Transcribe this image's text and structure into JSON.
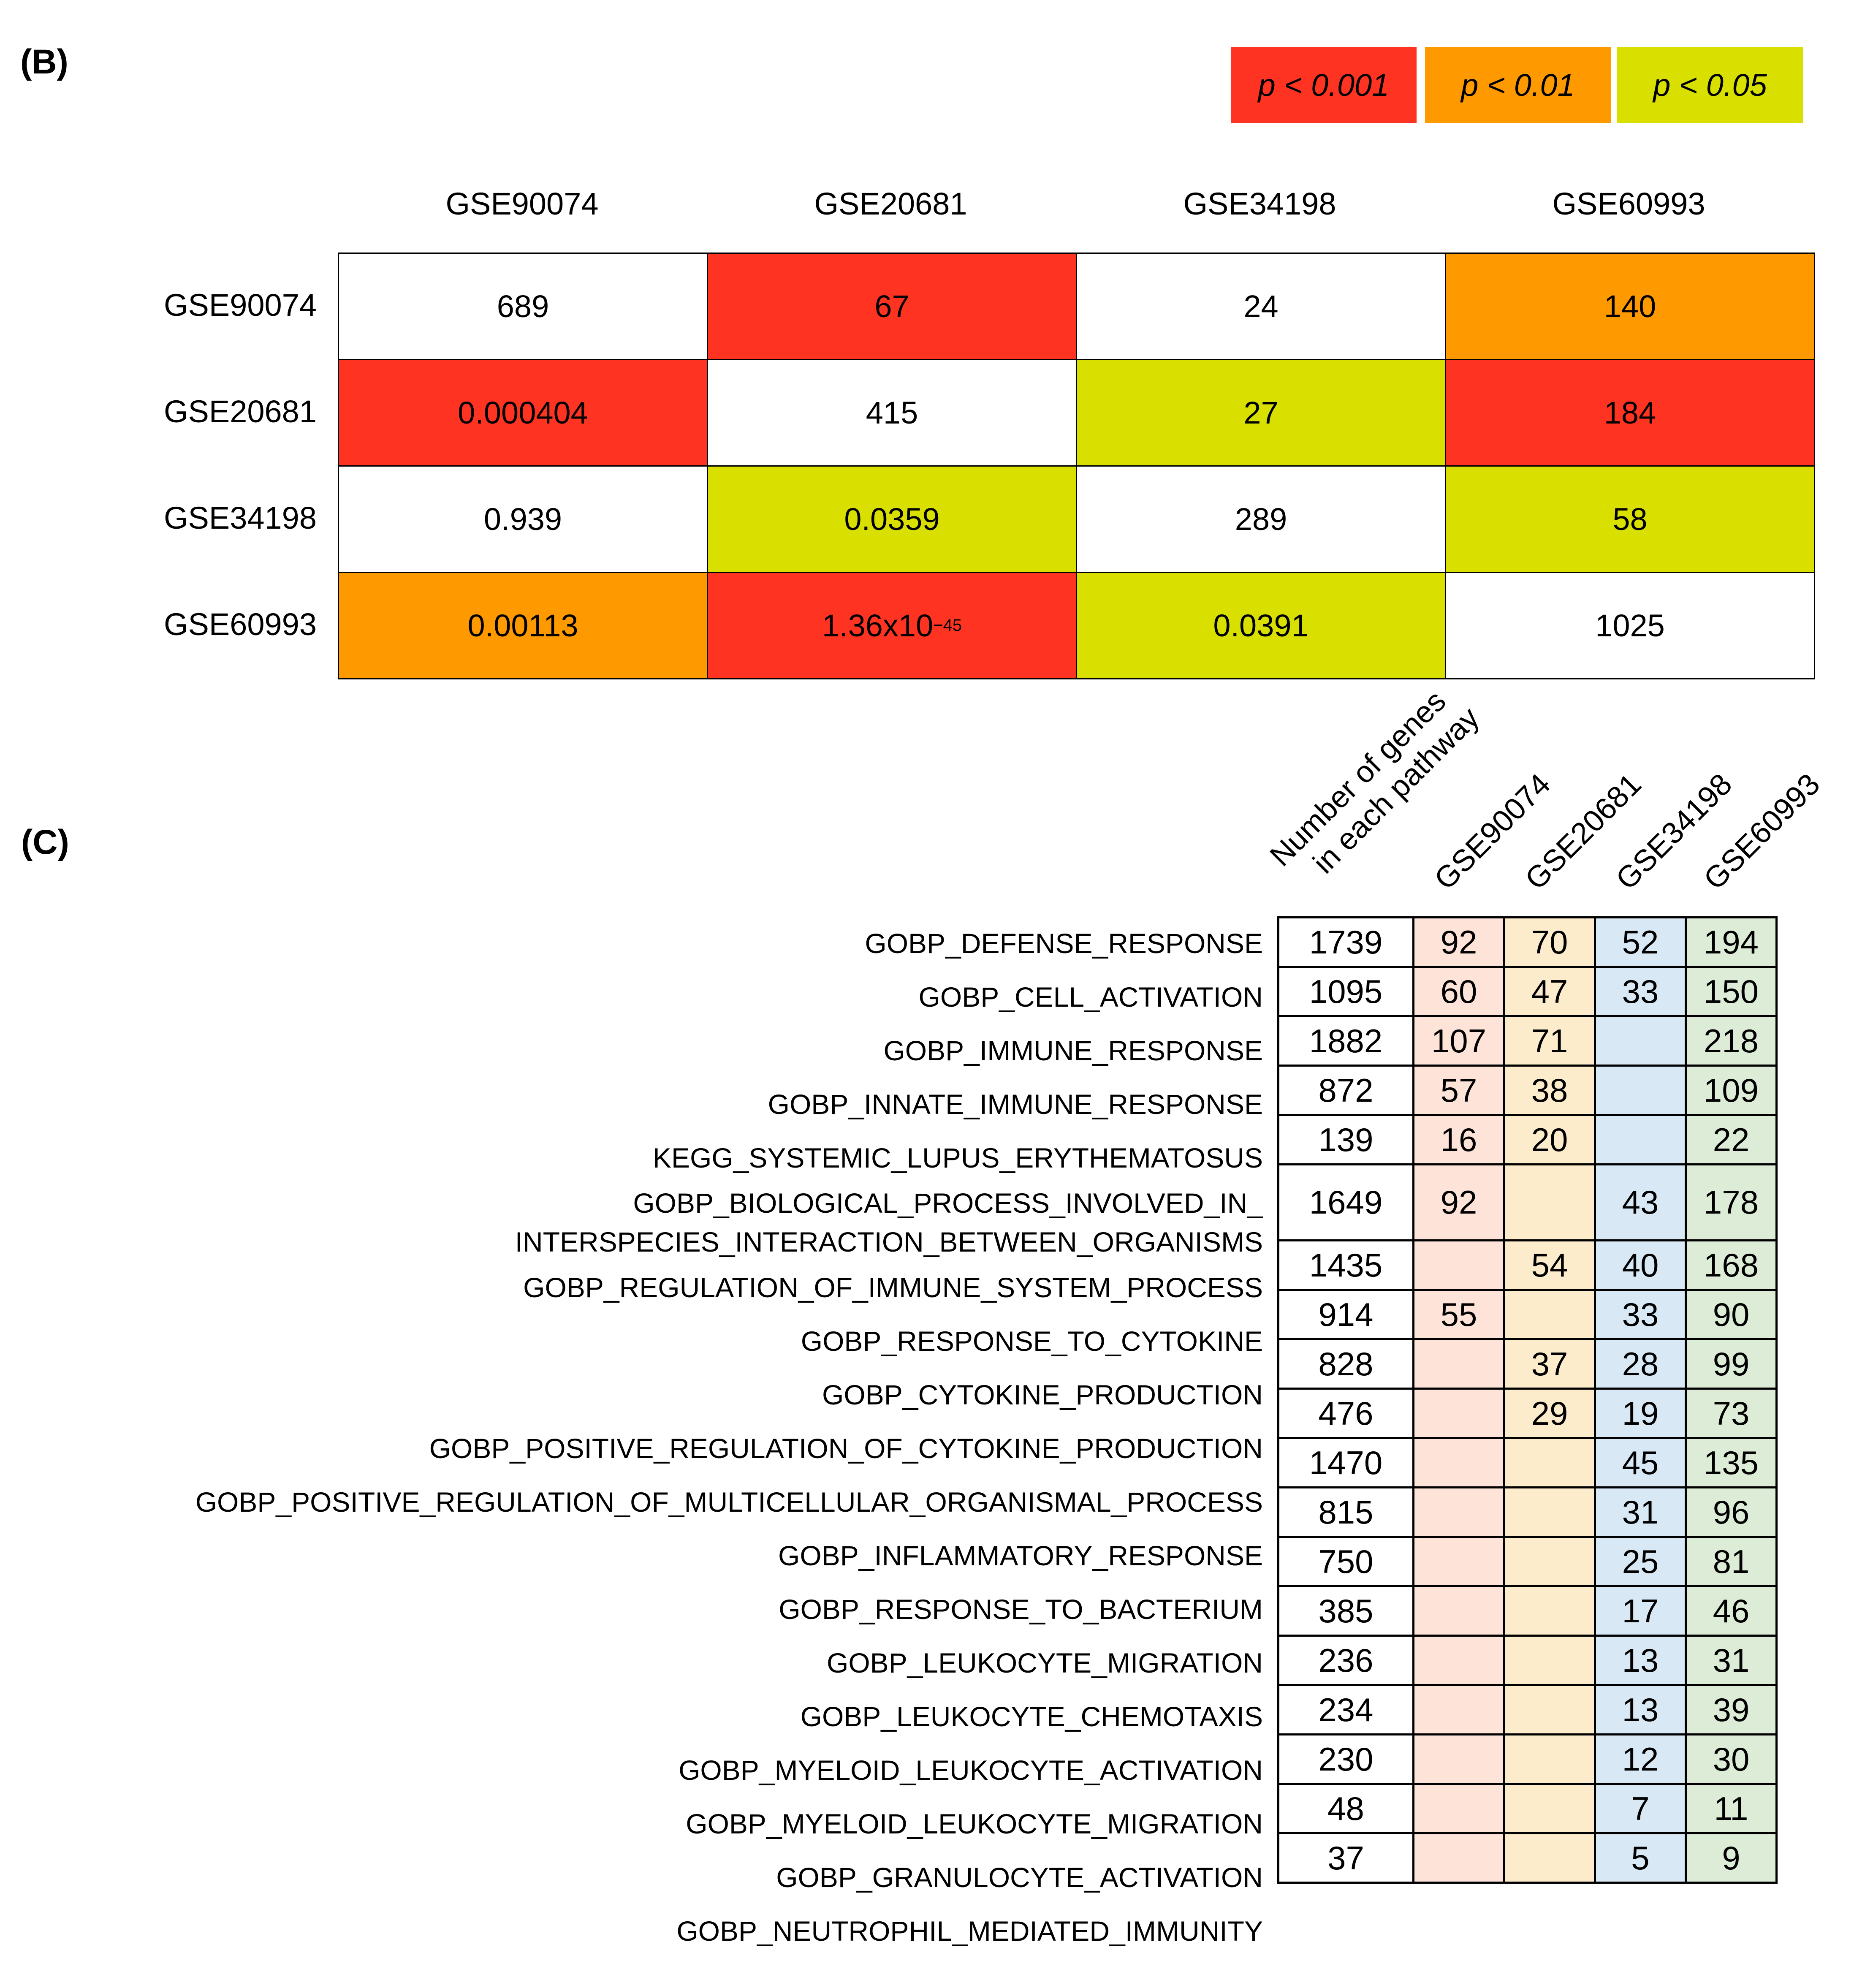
{
  "panel_b_label": "(B)",
  "panel_c_label": "(C)",
  "legend": [
    {
      "label": "p < 0.001",
      "color": "#ff3322"
    },
    {
      "label": "p < 0.01",
      "color": "#ff9900"
    },
    {
      "label": "p < 0.05",
      "color": "#d9e000"
    }
  ],
  "chart_data": [
    {
      "type": "heatmap",
      "title": "(B)",
      "columns": [
        "GSE90074",
        "GSE20681",
        "GSE34198",
        "GSE60993"
      ],
      "rows": [
        "GSE90074",
        "GSE20681",
        "GSE34198",
        "GSE60993"
      ],
      "cells": [
        [
          {
            "text": "689",
            "fill": "#ffffff"
          },
          {
            "text": "67",
            "fill": "#ff3322"
          },
          {
            "text": "24",
            "fill": "#ffffff"
          },
          {
            "text": "140",
            "fill": "#ff9900"
          }
        ],
        [
          {
            "text": "0.000404",
            "fill": "#ff3322"
          },
          {
            "text": "415",
            "fill": "#ffffff"
          },
          {
            "text": "27",
            "fill": "#d9e000"
          },
          {
            "text": "184",
            "fill": "#ff3322"
          }
        ],
        [
          {
            "text": "0.939",
            "fill": "#ffffff"
          },
          {
            "text": "0.0359",
            "fill": "#d9e000"
          },
          {
            "text": "289",
            "fill": "#ffffff"
          },
          {
            "text": "58",
            "fill": "#d9e000"
          }
        ],
        [
          {
            "text": "0.00113",
            "fill": "#ff9900"
          },
          {
            "text": "1.36x10",
            "sup": "−45",
            "fill": "#ff3322"
          },
          {
            "text": "0.0391",
            "fill": "#d9e000"
          },
          {
            "text": "1025",
            "fill": "#ffffff"
          }
        ]
      ]
    },
    {
      "type": "table",
      "title": "(C)",
      "columns": [
        "Number of genes in each pathway",
        "GSE90074",
        "GSE20681",
        "GSE34198",
        "GSE60993"
      ],
      "column_header_lines": [
        [
          "Number of genes",
          "in each pathway"
        ],
        [
          "GSE90074"
        ],
        [
          "GSE20681"
        ],
        [
          "GSE34198"
        ],
        [
          "GSE60993"
        ]
      ],
      "column_colors": [
        "#ffffff",
        "#fde3d8",
        "#fdeccb",
        "#d8e8f5",
        "#dcecd6"
      ],
      "rows": [
        {
          "pathway": [
            "GOBP_DEFENSE_RESPONSE"
          ],
          "values": [
            "1739",
            "92",
            "70",
            "52",
            "194"
          ]
        },
        {
          "pathway": [
            "GOBP_CELL_ACTIVATION"
          ],
          "values": [
            "1095",
            "60",
            "47",
            "33",
            "150"
          ]
        },
        {
          "pathway": [
            "GOBP_IMMUNE_RESPONSE"
          ],
          "values": [
            "1882",
            "107",
            "71",
            "",
            "218"
          ]
        },
        {
          "pathway": [
            "GOBP_INNATE_IMMUNE_RESPONSE"
          ],
          "values": [
            "872",
            "57",
            "38",
            "",
            "109"
          ]
        },
        {
          "pathway": [
            "KEGG_SYSTEMIC_LUPUS_ERYTHEMATOSUS"
          ],
          "values": [
            "139",
            "16",
            "20",
            "",
            "22"
          ]
        },
        {
          "pathway": [
            "GOBP_BIOLOGICAL_PROCESS_INVOLVED_IN_",
            "INTERSPECIES_INTERACTION_BETWEEN_ORGANISMS"
          ],
          "values": [
            "1649",
            "92",
            "",
            "43",
            "178"
          ]
        },
        {
          "pathway": [
            "GOBP_REGULATION_OF_IMMUNE_SYSTEM_PROCESS"
          ],
          "values": [
            "1435",
            "",
            "54",
            "40",
            "168"
          ]
        },
        {
          "pathway": [
            "GOBP_RESPONSE_TO_CYTOKINE"
          ],
          "values": [
            "914",
            "55",
            "",
            "33",
            "90"
          ]
        },
        {
          "pathway": [
            "GOBP_CYTOKINE_PRODUCTION"
          ],
          "values": [
            "828",
            "",
            "37",
            "28",
            "99"
          ]
        },
        {
          "pathway": [
            "GOBP_POSITIVE_REGULATION_OF_CYTOKINE_PRODUCTION"
          ],
          "values": [
            "476",
            "",
            "29",
            "19",
            "73"
          ]
        },
        {
          "pathway": [
            "GOBP_POSITIVE_REGULATION_OF_MULTICELLULAR_ORGANISMAL_PROCESS"
          ],
          "values": [
            "1470",
            "",
            "",
            "45",
            "135"
          ]
        },
        {
          "pathway": [
            "GOBP_INFLAMMATORY_RESPONSE"
          ],
          "values": [
            "815",
            "",
            "",
            "31",
            "96"
          ]
        },
        {
          "pathway": [
            "GOBP_RESPONSE_TO_BACTERIUM"
          ],
          "values": [
            "750",
            "",
            "",
            "25",
            "81"
          ]
        },
        {
          "pathway": [
            "GOBP_LEUKOCYTE_MIGRATION"
          ],
          "values": [
            "385",
            "",
            "",
            "17",
            "46"
          ]
        },
        {
          "pathway": [
            "GOBP_LEUKOCYTE_CHEMOTAXIS"
          ],
          "values": [
            "236",
            "",
            "",
            "13",
            "31"
          ]
        },
        {
          "pathway": [
            "GOBP_MYELOID_LEUKOCYTE_ACTIVATION"
          ],
          "values": [
            "234",
            "",
            "",
            "13",
            "39"
          ]
        },
        {
          "pathway": [
            "GOBP_MYELOID_LEUKOCYTE_MIGRATION"
          ],
          "values": [
            "230",
            "",
            "",
            "12",
            "30"
          ]
        },
        {
          "pathway": [
            "GOBP_GRANULOCYTE_ACTIVATION"
          ],
          "values": [
            "48",
            "",
            "",
            "7",
            "11"
          ]
        },
        {
          "pathway": [
            "GOBP_NEUTROPHIL_MEDIATED_IMMUNITY"
          ],
          "values": [
            "37",
            "",
            "",
            "5",
            "9"
          ]
        }
      ]
    }
  ]
}
